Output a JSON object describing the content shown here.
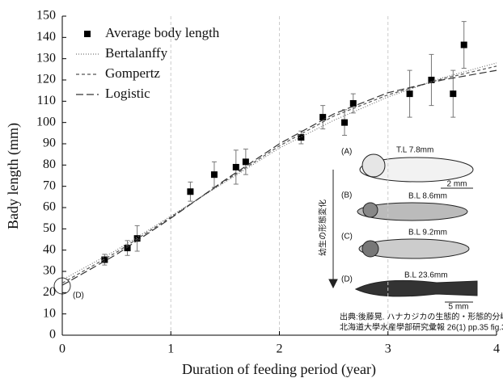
{
  "chart_data": {
    "type": "scatter",
    "xlabel": "Duration of feeding period (year)",
    "ylabel": "Bady length (mm)",
    "xlim": [
      0,
      4
    ],
    "xticks": [
      0,
      1,
      2,
      3,
      4
    ],
    "ylim": [
      0,
      150
    ],
    "yticks": [
      0,
      10,
      20,
      30,
      40,
      50,
      60,
      70,
      80,
      90,
      100,
      110,
      120,
      130,
      140,
      150
    ],
    "grid": "x",
    "legend": "top-left",
    "series": [
      {
        "name": "Average body length",
        "color": "#000000",
        "marker": "square",
        "x": [
          0.39,
          0.6,
          0.69,
          1.18,
          1.4,
          1.6,
          1.69,
          2.2,
          2.4,
          2.6,
          2.68,
          3.2,
          3.4,
          3.6,
          3.7
        ],
        "values": [
          35.5,
          41,
          45.5,
          67.5,
          75.5,
          79,
          81.5,
          93,
          102.5,
          100,
          109,
          113.5,
          120,
          113.5,
          136.5
        ],
        "errors": [
          2.5,
          3.5,
          6,
          4.5,
          6,
          8,
          6,
          3,
          5.5,
          6,
          4.5,
          11,
          12,
          11,
          11
        ]
      },
      {
        "name": "Bertalanffy",
        "color": "#777777",
        "dash": "dotted",
        "x": [
          0,
          0.5,
          1,
          1.5,
          2,
          2.5,
          3,
          3.5,
          4
        ],
        "values": [
          26,
          40,
          56,
          72,
          88,
          101,
          112,
          121,
          128
        ]
      },
      {
        "name": "Gompertz",
        "color": "#555555",
        "dash": "dashed",
        "x": [
          0,
          0.5,
          1,
          1.5,
          2,
          2.5,
          3,
          3.5,
          4
        ],
        "values": [
          24.5,
          39,
          55.5,
          72.5,
          89,
          103,
          113,
          120.5,
          126.5
        ]
      },
      {
        "name": "Logistic",
        "color": "#333333",
        "dash": "long-dash",
        "x": [
          0,
          0.5,
          1,
          1.5,
          2,
          2.5,
          3,
          3.5,
          4
        ],
        "values": [
          23.5,
          38,
          55,
          73,
          90,
          104,
          114,
          120,
          124.5
        ]
      }
    ],
    "origin_label": "(D)",
    "inset": {
      "stages": [
        {
          "label": "(A)",
          "size": "T.L 7.8mm"
        },
        {
          "label": "(B)",
          "size": "B.L 8.6mm"
        },
        {
          "label": "(C)",
          "size": "B.L 9.2mm"
        },
        {
          "label": "(D)",
          "size": "B.L 23.6mm"
        }
      ],
      "arrow_label": "幼生の形態変化",
      "scales": [
        "2 mm",
        "5 mm"
      ],
      "source": [
        "出典:後藤晃. ハナカジカの生態的・形態的分岐 -I",
        "北海道大學水産學部研究彙報  26(1)  pp.35  fig.3"
      ]
    }
  }
}
